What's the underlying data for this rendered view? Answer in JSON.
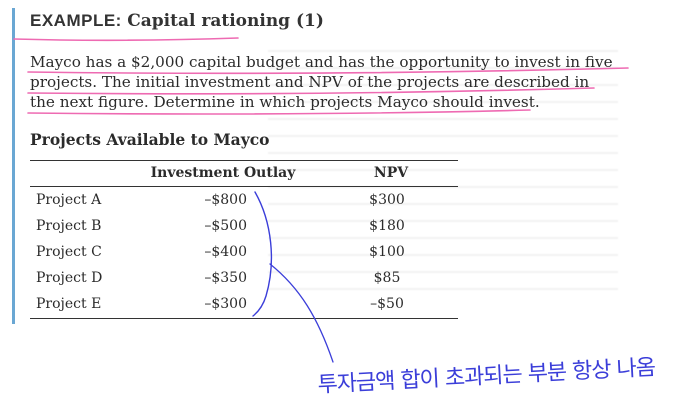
{
  "heading": {
    "keyword": "EXAMPLE:",
    "title": "Capital rationing (1)"
  },
  "intro_lines": [
    "Mayco has a $2,000 capital budget and has the opportunity to invest in five",
    "projects. The initial investment and NPV of the projects are described in",
    "the next figure. Determine in which projects Mayco should invest."
  ],
  "table": {
    "title": "Projects Available to Mayco",
    "columns": [
      "",
      "Investment Outlay",
      "NPV"
    ],
    "rows": [
      [
        "Project A",
        "–$800",
        "$300"
      ],
      [
        "Project B",
        "–$500",
        "$180"
      ],
      [
        "Project C",
        "–$400",
        "$100"
      ],
      [
        "Project D",
        "–$350",
        "$85"
      ],
      [
        "Project E",
        "–$300",
        "–$50"
      ]
    ]
  },
  "handwriting": {
    "note": "투자금액 합이 초과되는 부분 항상 나옴"
  },
  "colors": {
    "accent_bar": "#6aa7d3",
    "highlight_pen": "#ee6ab2",
    "annotation_pen": "#3b3ed9"
  }
}
